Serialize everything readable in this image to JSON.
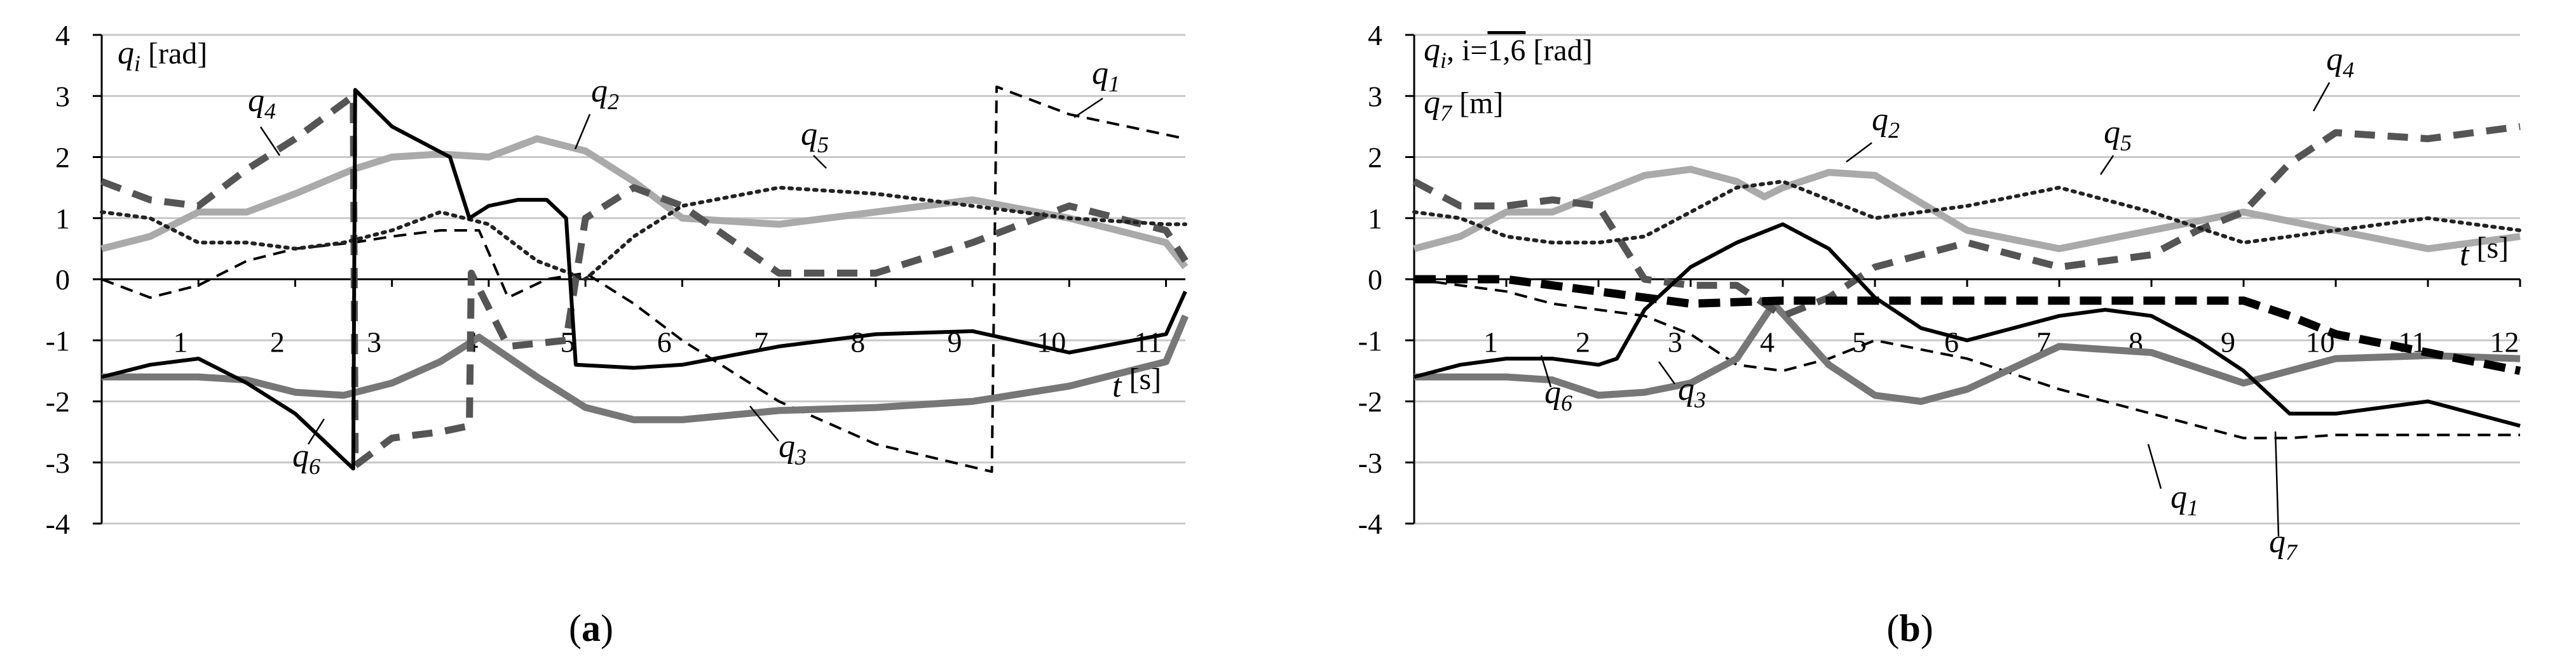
{
  "panels": [
    {
      "id": "a",
      "caption_open": "(",
      "caption_letter": "a",
      "caption_close": ")",
      "ylabel_line1": {
        "sym": "q",
        "sub": "i",
        "unit": " [rad]"
      },
      "ylabel_line2": null,
      "xlabel": {
        "sym": "t",
        "unit": " [s]"
      },
      "xticks": [
        "1",
        "2",
        "3",
        "4",
        "5",
        "6",
        "7",
        "8",
        "9",
        "10",
        "11"
      ],
      "yticks": [
        "4",
        "3",
        "2",
        "1",
        "0",
        "-1",
        "-2",
        "-3",
        "-4"
      ],
      "series_labels": [
        {
          "sym": "q",
          "sub": "1"
        },
        {
          "sym": "q",
          "sub": "2"
        },
        {
          "sym": "q",
          "sub": "3"
        },
        {
          "sym": "q",
          "sub": "4"
        },
        {
          "sym": "q",
          "sub": "5"
        },
        {
          "sym": "q",
          "sub": "6"
        }
      ]
    },
    {
      "id": "b",
      "caption_open": "(",
      "caption_letter": "b",
      "caption_close": ")",
      "ylabel_line1": {
        "sym": "q",
        "sub": "i",
        "mid": ", i=",
        "over": "1,6",
        "unit": " [rad]"
      },
      "ylabel_line2": {
        "sym": "q",
        "sub": "7",
        "unit": " [m]"
      },
      "xlabel": {
        "sym": "t",
        "unit": " [s]"
      },
      "xticks": [
        "1",
        "2",
        "3",
        "4",
        "5",
        "6",
        "7",
        "8",
        "9",
        "10",
        "11",
        "12"
      ],
      "yticks": [
        "4",
        "3",
        "2",
        "1",
        "0",
        "-1",
        "-2",
        "-3",
        "-4"
      ],
      "series_labels": [
        {
          "sym": "q",
          "sub": "1"
        },
        {
          "sym": "q",
          "sub": "2"
        },
        {
          "sym": "q",
          "sub": "3"
        },
        {
          "sym": "q",
          "sub": "4"
        },
        {
          "sym": "q",
          "sub": "5"
        },
        {
          "sym": "q",
          "sub": "6"
        },
        {
          "sym": "q",
          "sub": "7"
        }
      ]
    }
  ],
  "chart_data": [
    {
      "type": "line",
      "xlim": [
        0,
        11.2
      ],
      "ylim": [
        -4,
        4
      ],
      "grid": "horizontal",
      "series": [
        {
          "name": "q1",
          "color": "#000000",
          "style": "dashed-thin",
          "x": [
            0,
            0.5,
            1,
            1.5,
            2,
            2.6,
            3,
            3.5,
            3.9,
            4.2,
            4.6,
            5,
            5.5,
            6,
            7,
            8,
            9.2,
            9.25,
            10,
            11.2
          ],
          "y": [
            0,
            -0.3,
            -0.1,
            0.3,
            0.5,
            0.6,
            0.7,
            0.8,
            0.8,
            -0.3,
            0,
            0.1,
            -0.4,
            -1,
            -2,
            -2.7,
            -3.15,
            3.15,
            2.7,
            2.3
          ]
        },
        {
          "name": "q2",
          "color": "#aaaaaa",
          "style": "solid-thick",
          "x": [
            0,
            0.5,
            1,
            1.5,
            2,
            2.6,
            3,
            3.5,
            4,
            4.5,
            5,
            5.5,
            6,
            7,
            8,
            9,
            10,
            11,
            11.2
          ],
          "y": [
            0.5,
            0.7,
            1.1,
            1.1,
            1.4,
            1.8,
            2.0,
            2.05,
            2.0,
            2.3,
            2.1,
            1.6,
            1.0,
            0.9,
            1.1,
            1.3,
            1.0,
            0.6,
            0.2
          ]
        },
        {
          "name": "q3",
          "color": "#777777",
          "style": "solid-thick",
          "x": [
            0,
            0.5,
            1,
            1.5,
            2,
            2.5,
            3,
            3.5,
            3.9,
            4.5,
            5,
            5.5,
            6,
            7,
            8,
            9,
            10,
            11,
            11.2
          ],
          "y": [
            -1.6,
            -1.6,
            -1.6,
            -1.65,
            -1.85,
            -1.9,
            -1.7,
            -1.35,
            -0.95,
            -1.6,
            -2.1,
            -2.3,
            -2.3,
            -2.15,
            -2.1,
            -2.0,
            -1.75,
            -1.35,
            -0.6
          ]
        },
        {
          "name": "q4",
          "color": "#555555",
          "style": "dashed-thick",
          "x": [
            0,
            0.5,
            1,
            1.5,
            2,
            2.6,
            2.62,
            3,
            3.5,
            3.8,
            3.82,
            4.2,
            4.8,
            5,
            5.5,
            6,
            7,
            8,
            9,
            10,
            11,
            11.2
          ],
          "y": [
            1.6,
            1.3,
            1.2,
            1.8,
            2.3,
            3.0,
            -3.05,
            -2.6,
            -2.5,
            -2.4,
            0.1,
            -1.1,
            -1.0,
            1.0,
            1.5,
            1.2,
            0.1,
            0.1,
            0.6,
            1.2,
            0.8,
            0.3
          ]
        },
        {
          "name": "q5",
          "color": "#222222",
          "style": "dotted",
          "x": [
            0,
            0.5,
            1,
            1.5,
            2,
            2.5,
            3,
            3.5,
            4,
            4.5,
            5,
            5.5,
            6,
            7,
            8,
            9,
            10,
            11,
            11.2
          ],
          "y": [
            1.1,
            1.0,
            0.6,
            0.6,
            0.5,
            0.6,
            0.8,
            1.1,
            0.9,
            0.3,
            0.0,
            0.7,
            1.2,
            1.5,
            1.4,
            1.2,
            1.0,
            0.9,
            0.9
          ]
        },
        {
          "name": "q6",
          "color": "#000000",
          "style": "solid",
          "x": [
            0,
            0.5,
            1,
            1.5,
            2,
            2.6,
            2.62,
            3,
            3.6,
            3.8,
            4.0,
            4.3,
            4.6,
            4.8,
            4.9,
            5.5,
            6,
            7,
            8,
            9,
            10,
            11,
            11.2
          ],
          "y": [
            -1.6,
            -1.4,
            -1.3,
            -1.7,
            -2.2,
            -3.1,
            3.1,
            2.5,
            2.0,
            1.0,
            1.2,
            1.3,
            1.3,
            1.0,
            -1.4,
            -1.45,
            -1.4,
            -1.1,
            -0.9,
            -0.85,
            -1.2,
            -0.9,
            -0.2
          ]
        }
      ]
    },
    {
      "type": "line",
      "xlim": [
        0,
        12
      ],
      "ylim": [
        -4,
        4
      ],
      "grid": "horizontal",
      "series": [
        {
          "name": "q1",
          "color": "#000000",
          "style": "dashed-thin",
          "x": [
            0,
            1,
            1.5,
            2,
            2.5,
            3,
            3.5,
            4,
            4.5,
            5,
            6,
            7,
            8,
            9,
            9.5,
            10,
            11,
            12
          ],
          "y": [
            0,
            -0.2,
            -0.4,
            -0.5,
            -0.6,
            -0.9,
            -1.4,
            -1.5,
            -1.3,
            -1.0,
            -1.3,
            -1.8,
            -2.2,
            -2.6,
            -2.6,
            -2.55,
            -2.55,
            -2.55
          ]
        },
        {
          "name": "q2",
          "color": "#aaaaaa",
          "style": "solid-thick",
          "x": [
            0,
            0.5,
            1,
            1.5,
            2,
            2.5,
            3,
            3.5,
            3.8,
            4,
            4.5,
            5,
            6,
            7,
            8,
            9,
            10,
            11,
            12
          ],
          "y": [
            0.5,
            0.7,
            1.1,
            1.1,
            1.4,
            1.7,
            1.8,
            1.6,
            1.35,
            1.5,
            1.75,
            1.7,
            0.8,
            0.5,
            0.8,
            1.1,
            0.8,
            0.5,
            0.7
          ]
        },
        {
          "name": "q3",
          "color": "#777777",
          "style": "solid-thick",
          "x": [
            0,
            0.5,
            1,
            1.5,
            2,
            2.5,
            3,
            3.5,
            3.9,
            4.5,
            5,
            5.5,
            6,
            7,
            8,
            9,
            10,
            11,
            12
          ],
          "y": [
            -1.6,
            -1.6,
            -1.6,
            -1.65,
            -1.9,
            -1.85,
            -1.7,
            -1.3,
            -0.4,
            -1.4,
            -1.9,
            -2.0,
            -1.8,
            -1.1,
            -1.2,
            -1.7,
            -1.3,
            -1.25,
            -1.3
          ]
        },
        {
          "name": "q4",
          "color": "#555555",
          "style": "dashed-thick",
          "x": [
            0,
            0.5,
            1,
            1.5,
            2,
            2.5,
            3,
            3.5,
            4,
            4.5,
            5,
            6,
            7,
            8,
            8.5,
            9,
            9.5,
            10,
            11,
            12
          ],
          "y": [
            1.6,
            1.2,
            1.2,
            1.3,
            1.2,
            0.0,
            -0.1,
            -0.1,
            -0.6,
            -0.3,
            0.2,
            0.6,
            0.2,
            0.4,
            0.8,
            1.1,
            1.9,
            2.4,
            2.3,
            2.5
          ]
        },
        {
          "name": "q5",
          "color": "#222222",
          "style": "dotted",
          "x": [
            0,
            0.5,
            1,
            1.5,
            2,
            2.5,
            3,
            3.5,
            4,
            4.5,
            5,
            6,
            7,
            8,
            9,
            10,
            11,
            12
          ],
          "y": [
            1.1,
            1.0,
            0.7,
            0.6,
            0.6,
            0.7,
            1.1,
            1.5,
            1.6,
            1.3,
            1.0,
            1.2,
            1.5,
            1.1,
            0.6,
            0.8,
            1.0,
            0.8
          ]
        },
        {
          "name": "q6",
          "color": "#000000",
          "style": "solid",
          "x": [
            0,
            0.5,
            1,
            1.5,
            2,
            2.2,
            2.5,
            3,
            3.5,
            4,
            4.5,
            5,
            5.5,
            6,
            7,
            7.5,
            8,
            8.5,
            9,
            9.5,
            10,
            11,
            12
          ],
          "y": [
            -1.6,
            -1.4,
            -1.3,
            -1.3,
            -1.4,
            -1.3,
            -0.5,
            0.2,
            0.6,
            0.9,
            0.5,
            -0.3,
            -0.8,
            -1.0,
            -0.6,
            -0.5,
            -0.6,
            -1.0,
            -1.5,
            -2.2,
            -2.2,
            -2.0,
            -2.4
          ]
        },
        {
          "name": "q7",
          "color": "#000000",
          "style": "dashed-heavy",
          "x": [
            0,
            1,
            2,
            3,
            4,
            5,
            6,
            7,
            8,
            9,
            9.5,
            10,
            11,
            12
          ],
          "y": [
            0,
            0,
            -0.2,
            -0.4,
            -0.35,
            -0.35,
            -0.35,
            -0.35,
            -0.35,
            -0.35,
            -0.6,
            -0.9,
            -1.2,
            -1.5
          ]
        }
      ]
    }
  ]
}
